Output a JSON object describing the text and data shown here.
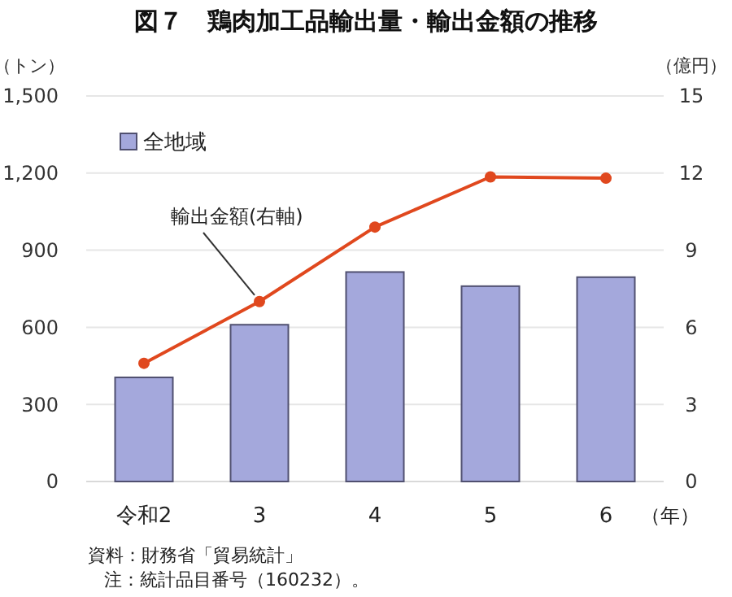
{
  "chart_data": {
    "type": "bar",
    "title": "図７　鶏肉加工品輸出量・輸出金額の推移",
    "ylabel": "（トン）",
    "y2label": "（億円）",
    "xlabel": "（年）",
    "categories": [
      "令和2",
      "3",
      "4",
      "5",
      "6"
    ],
    "series": [
      {
        "name": "全地域",
        "color": "#a4a8dc",
        "values": [
          405,
          610,
          815,
          760,
          795
        ]
      },
      {
        "name": "輸出金額(右軸)",
        "type": "line",
        "axis": "y2",
        "color": "#e0481e",
        "marker": "circle",
        "values": [
          4.6,
          7.0,
          9.9,
          11.85,
          11.8
        ]
      }
    ],
    "ylim": [
      0,
      1500
    ],
    "yticks": [
      {
        "value": 0,
        "label": "0"
      },
      {
        "value": 300,
        "label": "300"
      },
      {
        "value": 600,
        "label": "600"
      },
      {
        "value": 900,
        "label": "900"
      },
      {
        "value": 1200,
        "label": "1,200"
      },
      {
        "value": 1500,
        "label": "1,500"
      }
    ],
    "y2lim": [
      0,
      15
    ],
    "y2ticks": [
      0,
      3,
      6,
      9,
      12,
      15
    ],
    "grid": "y",
    "legend": "top left",
    "annotations": [
      "資料：財務省「貿易統計」",
      "注：統計品目番号（160232）。"
    ]
  }
}
